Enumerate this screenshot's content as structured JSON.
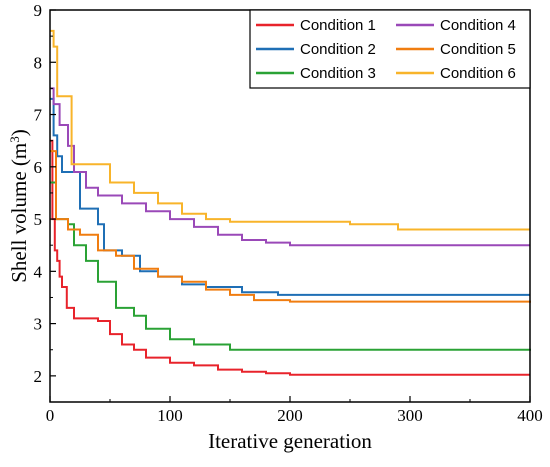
{
  "chart_data": {
    "type": "line",
    "title": "",
    "xlabel": "Iterative generation",
    "ylabel_main": "Shell volume (m",
    "ylabel_sup": "3",
    "ylabel_close": ")",
    "xlim": [
      0,
      400
    ],
    "ylim": [
      1.5,
      9
    ],
    "xticks": [
      0,
      100,
      200,
      300,
      400
    ],
    "yticks": [
      2,
      3,
      4,
      5,
      6,
      7,
      8,
      9
    ],
    "grid": false,
    "legend_position": "top-right",
    "legend_columns": 2,
    "series": [
      {
        "name": "Condition 1",
        "color": "#e8232b",
        "points": [
          [
            0,
            6.5
          ],
          [
            2,
            5.0
          ],
          [
            4,
            4.4
          ],
          [
            6,
            4.2
          ],
          [
            8,
            3.9
          ],
          [
            10,
            3.7
          ],
          [
            14,
            3.3
          ],
          [
            20,
            3.1
          ],
          [
            40,
            3.05
          ],
          [
            50,
            2.8
          ],
          [
            60,
            2.6
          ],
          [
            70,
            2.5
          ],
          [
            80,
            2.35
          ],
          [
            100,
            2.25
          ],
          [
            120,
            2.2
          ],
          [
            140,
            2.12
          ],
          [
            160,
            2.08
          ],
          [
            180,
            2.05
          ],
          [
            200,
            2.02
          ],
          [
            400,
            2.02
          ]
        ]
      },
      {
        "name": "Condition 2",
        "color": "#1f6fb5",
        "points": [
          [
            0,
            7.3
          ],
          [
            3,
            6.6
          ],
          [
            6,
            6.2
          ],
          [
            10,
            5.9
          ],
          [
            20,
            5.9
          ],
          [
            25,
            5.2
          ],
          [
            40,
            4.9
          ],
          [
            45,
            4.4
          ],
          [
            60,
            4.3
          ],
          [
            75,
            4.0
          ],
          [
            90,
            3.9
          ],
          [
            110,
            3.75
          ],
          [
            130,
            3.7
          ],
          [
            160,
            3.6
          ],
          [
            190,
            3.55
          ],
          [
            400,
            3.55
          ]
        ]
      },
      {
        "name": "Condition 3",
        "color": "#2aa235",
        "points": [
          [
            0,
            5.7
          ],
          [
            5,
            5.0
          ],
          [
            15,
            4.9
          ],
          [
            20,
            4.5
          ],
          [
            30,
            4.2
          ],
          [
            40,
            3.8
          ],
          [
            55,
            3.3
          ],
          [
            70,
            3.15
          ],
          [
            80,
            2.9
          ],
          [
            100,
            2.7
          ],
          [
            120,
            2.6
          ],
          [
            150,
            2.5
          ],
          [
            400,
            2.48
          ]
        ]
      },
      {
        "name": "Condition 4",
        "color": "#9a49b8",
        "points": [
          [
            0,
            7.5
          ],
          [
            3,
            7.2
          ],
          [
            8,
            6.8
          ],
          [
            15,
            6.4
          ],
          [
            20,
            5.9
          ],
          [
            30,
            5.6
          ],
          [
            40,
            5.45
          ],
          [
            60,
            5.3
          ],
          [
            80,
            5.15
          ],
          [
            100,
            5.0
          ],
          [
            120,
            4.85
          ],
          [
            140,
            4.7
          ],
          [
            160,
            4.6
          ],
          [
            180,
            4.55
          ],
          [
            200,
            4.5
          ],
          [
            400,
            4.5
          ]
        ]
      },
      {
        "name": "Condition 5",
        "color": "#f07d10",
        "points": [
          [
            0,
            6.3
          ],
          [
            5,
            5.0
          ],
          [
            15,
            4.8
          ],
          [
            25,
            4.7
          ],
          [
            40,
            4.4
          ],
          [
            55,
            4.3
          ],
          [
            70,
            4.05
          ],
          [
            90,
            3.9
          ],
          [
            110,
            3.8
          ],
          [
            130,
            3.65
          ],
          [
            150,
            3.55
          ],
          [
            170,
            3.45
          ],
          [
            200,
            3.42
          ],
          [
            400,
            3.4
          ]
        ]
      },
      {
        "name": "Condition 6",
        "color": "#f8b42a",
        "points": [
          [
            0,
            8.6
          ],
          [
            3,
            8.3
          ],
          [
            6,
            7.35
          ],
          [
            15,
            7.35
          ],
          [
            18,
            6.05
          ],
          [
            40,
            6.05
          ],
          [
            50,
            5.7
          ],
          [
            70,
            5.5
          ],
          [
            90,
            5.3
          ],
          [
            110,
            5.1
          ],
          [
            130,
            5.0
          ],
          [
            150,
            4.95
          ],
          [
            180,
            4.95
          ],
          [
            250,
            4.9
          ],
          [
            290,
            4.8
          ],
          [
            400,
            4.8
          ]
        ]
      }
    ]
  }
}
